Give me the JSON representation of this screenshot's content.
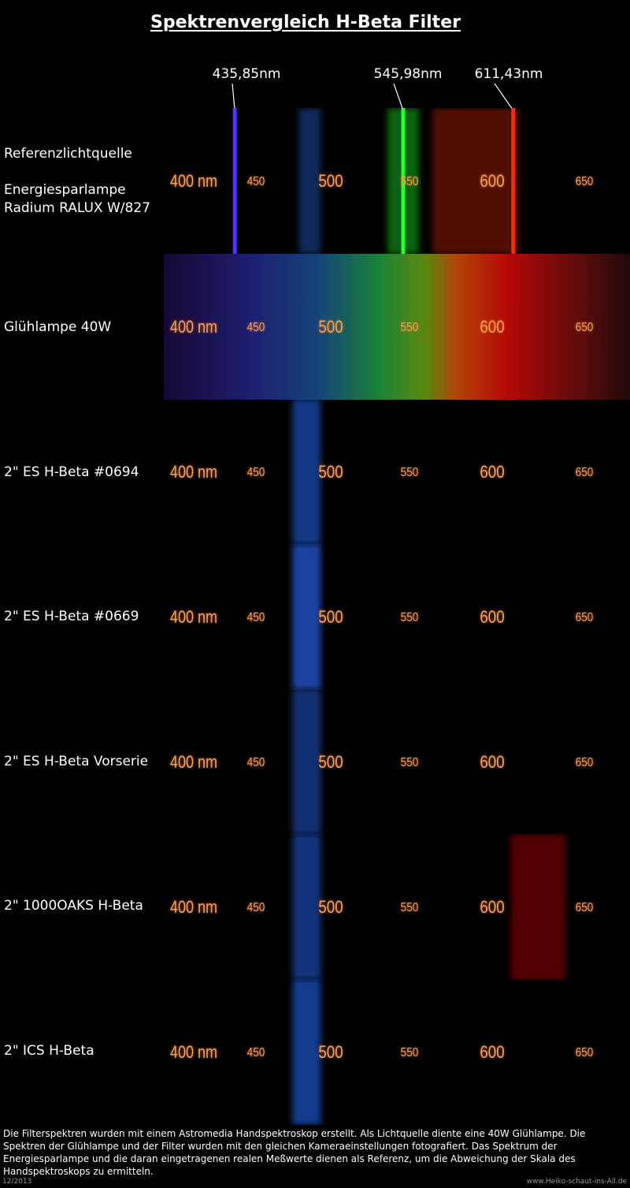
{
  "title": "Spektrenvergleich H-Beta Filter",
  "reference_lines": [
    {
      "label": "435,85nm",
      "wavelength": 435.85,
      "color": "#5533ff"
    },
    {
      "label": "545,98nm",
      "wavelength": 545.98,
      "color": "#22ff33"
    },
    {
      "label": "611,43nm",
      "wavelength": 611.43,
      "color": "#ff2a10"
    }
  ],
  "scale": {
    "unit_label": "400 nm",
    "ticks": [
      "450",
      "500",
      "550",
      "600",
      "650"
    ],
    "tick_color": "#f29a4a"
  },
  "rows": [
    {
      "id": "referenz",
      "labels": [
        "Referenzlichtquelle",
        "",
        "Energiesparlampe",
        "Radium RALUX W/827"
      ],
      "kind": "reference"
    },
    {
      "id": "gluehlampe",
      "labels": [
        "Glühlampe 40W"
      ],
      "kind": "continuum"
    },
    {
      "id": "es0694",
      "labels": [
        "2\" ES H-Beta #0694"
      ],
      "kind": "hbeta",
      "band_strength": 0.7
    },
    {
      "id": "es0669",
      "labels": [
        "2\" ES H-Beta #0669"
      ],
      "kind": "hbeta",
      "band_strength": 0.85
    },
    {
      "id": "esvorserie",
      "labels": [
        "2\" ES H-Beta Vorserie"
      ],
      "kind": "hbeta",
      "band_strength": 0.6
    },
    {
      "id": "oaks",
      "labels": [
        "2\" 1000OAKS H-Beta"
      ],
      "kind": "hbeta_red",
      "band_strength": 0.65
    },
    {
      "id": "ics",
      "labels": [
        "2\" ICS H-Beta"
      ],
      "kind": "hbeta",
      "band_strength": 0.75
    }
  ],
  "footer": {
    "text": "Die Filterspektren wurden mit einem Astromedia Handspektroskop erstellt. Als Lichtquelle diente eine 40W Glühlampe. Die Spektren der Glühlampe und der Filter wurden mit den gleichen Kameraeinstellungen fotografiert. Das Spektrum der Energiesparlampe und die daran eingetragenen realen Meßwerte dienen als Referenz, um die Abweichung der Skala des Handspektroskops zu ermitteln.",
    "date": "12/2013",
    "site": "www.Heiko-schaut-ins-All.de"
  }
}
